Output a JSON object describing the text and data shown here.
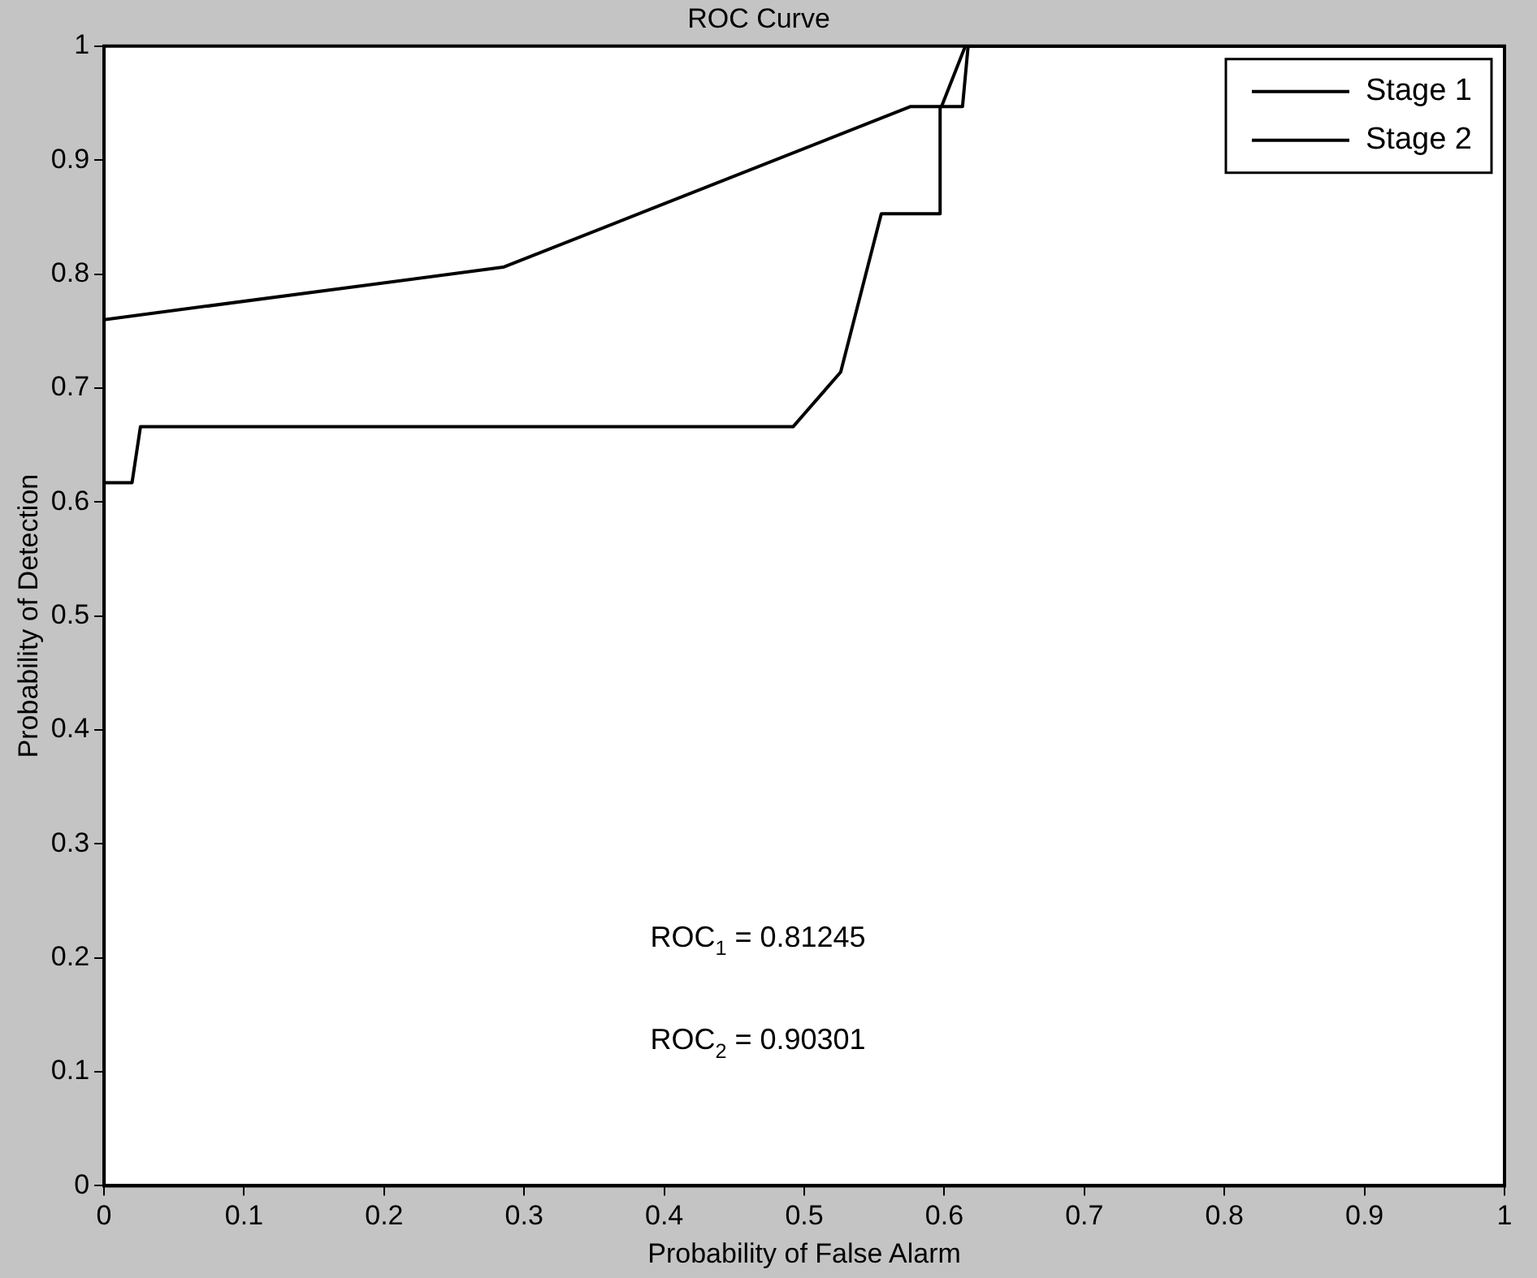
{
  "chart_data": {
    "type": "line",
    "title": "ROC Curve",
    "xlabel": "Probability of False Alarm",
    "ylabel": "Probability of Detection",
    "xlim": [
      0,
      1
    ],
    "ylim": [
      0,
      1
    ],
    "xticks": [
      0,
      0.1,
      0.2,
      0.3,
      0.4,
      0.5,
      0.6,
      0.7,
      0.8,
      0.9,
      1
    ],
    "yticks": [
      0,
      0.1,
      0.2,
      0.3,
      0.4,
      0.5,
      0.6,
      0.7,
      0.8,
      0.9,
      1
    ],
    "grid": false,
    "legend": "top right",
    "marker": "none",
    "line_style": "solid",
    "series": [
      {
        "name": "Stage 1",
        "color": "#000000",
        "x": [
          0,
          0,
          0.02,
          0.026,
          0.492,
          0.526,
          0.555,
          0.597,
          0.597,
          0.613,
          0.617,
          1
        ],
        "values": [
          0,
          0.617,
          0.617,
          0.666,
          0.666,
          0.714,
          0.853,
          0.853,
          0.947,
          0.947,
          1,
          1
        ]
      },
      {
        "name": "Stage 2",
        "color": "#000000",
        "x": [
          0,
          0,
          0.285,
          0.576,
          0.598,
          0.615,
          1
        ],
        "values": [
          0,
          0.76,
          0.806,
          0.947,
          0.947,
          1,
          1
        ]
      }
    ],
    "annotations": [
      "ROC$_{1}$ = 0.81245",
      "ROC$_{2}$ = 0.90301"
    ]
  }
}
